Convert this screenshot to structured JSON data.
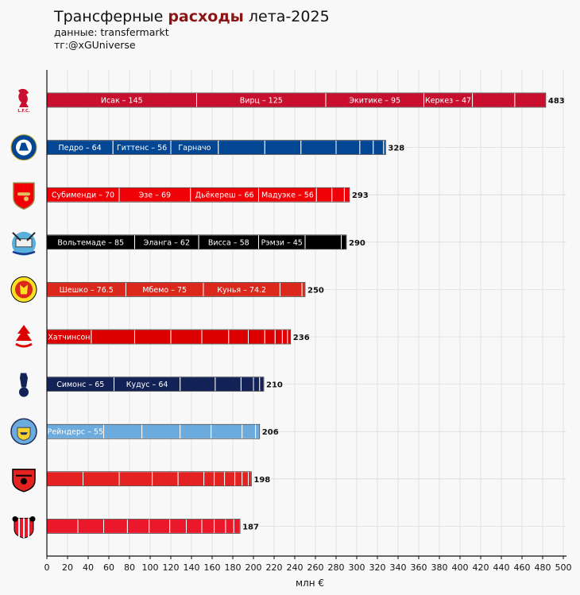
{
  "header": {
    "title_part1": "Трансферные ",
    "title_accent": "расходы",
    "title_part2": " лета-2025",
    "source": "данные: transfermarkt",
    "handle": "тг:@xGUniverse"
  },
  "colors": {
    "accent": "#8b1515",
    "grid": "#dcdcdc"
  },
  "chart_data": {
    "type": "bar",
    "orientation": "horizontal",
    "stacked": true,
    "xlabel": "млн €",
    "xlim": [
      0,
      500
    ],
    "xticks": [
      0,
      20,
      40,
      60,
      80,
      100,
      120,
      140,
      160,
      180,
      200,
      220,
      240,
      260,
      280,
      300,
      320,
      340,
      360,
      380,
      400,
      420,
      440,
      460,
      480,
      500
    ],
    "grid": true,
    "bars": [
      {
        "team": "Liverpool",
        "crest": "liverbird-icon",
        "color": "#c8102e",
        "total": "483",
        "segments": [
          {
            "label": "Исак – 145",
            "value": 145
          },
          {
            "label": "Вирц – 125",
            "value": 125
          },
          {
            "label": "Экитике – 95",
            "value": 95
          },
          {
            "label": "Керкез – 47",
            "value": 47
          },
          {
            "label": "",
            "value": 41
          },
          {
            "label": "",
            "value": 30
          }
        ]
      },
      {
        "team": "Chelsea",
        "crest": "chelsea-lion-icon",
        "color": "#034694",
        "total": "328",
        "segments": [
          {
            "label": "Педро – 64",
            "value": 64
          },
          {
            "label": "Гиттенс – 56",
            "value": 56
          },
          {
            "label": "Гарначо",
            "value": 46
          },
          {
            "label": "",
            "value": 45
          },
          {
            "label": "",
            "value": 35
          },
          {
            "label": "",
            "value": 34
          },
          {
            "label": "",
            "value": 23
          },
          {
            "label": "",
            "value": 13
          },
          {
            "label": "",
            "value": 10
          },
          {
            "label": "",
            "value": 2
          }
        ]
      },
      {
        "team": "Arsenal",
        "crest": "cannon-icon",
        "color": "#ef0107",
        "total": "293",
        "segments": [
          {
            "label": "Субименди – 70",
            "value": 70
          },
          {
            "label": "Эзе – 69",
            "value": 69
          },
          {
            "label": "Дьёкереш – 66",
            "value": 66
          },
          {
            "label": "Мадуэке – 56",
            "value": 56
          },
          {
            "label": "",
            "value": 15
          },
          {
            "label": "",
            "value": 12
          },
          {
            "label": "",
            "value": 5
          }
        ]
      },
      {
        "team": "Newcastle",
        "crest": "magpie-crest-icon",
        "color": "#000000",
        "total": "290",
        "segments": [
          {
            "label": "Вольтемаде – 85",
            "value": 85
          },
          {
            "label": "Эланга – 62",
            "value": 62
          },
          {
            "label": "Висса – 58",
            "value": 58
          },
          {
            "label": "Рэмзи – 45",
            "value": 45
          },
          {
            "label": "",
            "value": 35
          },
          {
            "label": "",
            "value": 5
          }
        ]
      },
      {
        "team": "Manchester United",
        "crest": "red-devil-icon",
        "color": "#da291c",
        "total": "250",
        "segments": [
          {
            "label": "Шешко – 76.5",
            "value": 76.5
          },
          {
            "label": "Мбемо – 75",
            "value": 75
          },
          {
            "label": "Кунья – 74.2",
            "value": 74.2
          },
          {
            "label": "",
            "value": 21.3
          },
          {
            "label": "",
            "value": 3
          }
        ]
      },
      {
        "team": "Nottingham Forest",
        "crest": "tree-crest-icon",
        "color": "#dd0000",
        "total": "236",
        "segments": [
          {
            "label": "Хатчинсон",
            "value": 43
          },
          {
            "label": "",
            "value": 42
          },
          {
            "label": "",
            "value": 35
          },
          {
            "label": "",
            "value": 30
          },
          {
            "label": "",
            "value": 26
          },
          {
            "label": "",
            "value": 19
          },
          {
            "label": "",
            "value": 16
          },
          {
            "label": "",
            "value": 10
          },
          {
            "label": "",
            "value": 7
          },
          {
            "label": "",
            "value": 5
          },
          {
            "label": "",
            "value": 3
          }
        ]
      },
      {
        "team": "Tottenham",
        "crest": "cockerel-icon",
        "color": "#132257",
        "total": "210",
        "segments": [
          {
            "label": "Симонс – 65",
            "value": 65
          },
          {
            "label": "Кудус – 64",
            "value": 64
          },
          {
            "label": "",
            "value": 34
          },
          {
            "label": "",
            "value": 25
          },
          {
            "label": "",
            "value": 12
          },
          {
            "label": "",
            "value": 6
          },
          {
            "label": "",
            "value": 4
          }
        ]
      },
      {
        "team": "Manchester City",
        "crest": "ship-crest-icon",
        "color": "#6cabdd",
        "total": "206",
        "segments": [
          {
            "label": "Рейндерс – 55",
            "value": 55
          },
          {
            "label": "",
            "value": 37
          },
          {
            "label": "",
            "value": 37
          },
          {
            "label": "",
            "value": 30
          },
          {
            "label": "",
            "value": 30
          },
          {
            "label": "",
            "value": 13
          },
          {
            "label": "",
            "value": 4
          }
        ]
      },
      {
        "team": "Bayer Leverkusen",
        "crest": "lion-shield-icon",
        "color": "#e32221",
        "total": "198",
        "segments": [
          {
            "label": "",
            "value": 35
          },
          {
            "label": "",
            "value": 35
          },
          {
            "label": "",
            "value": 32
          },
          {
            "label": "",
            "value": 25
          },
          {
            "label": "",
            "value": 25
          },
          {
            "label": "",
            "value": 10
          },
          {
            "label": "",
            "value": 10
          },
          {
            "label": "",
            "value": 10
          },
          {
            "label": "",
            "value": 7
          },
          {
            "label": "",
            "value": 6
          },
          {
            "label": "",
            "value": 3
          }
        ]
      },
      {
        "team": "Sunderland",
        "crest": "sunderland-crest-icon",
        "color": "#eb172b",
        "total": "187",
        "segments": [
          {
            "label": "",
            "value": 30
          },
          {
            "label": "",
            "value": 25
          },
          {
            "label": "",
            "value": 23
          },
          {
            "label": "",
            "value": 21
          },
          {
            "label": "",
            "value": 20
          },
          {
            "label": "",
            "value": 16
          },
          {
            "label": "",
            "value": 15
          },
          {
            "label": "",
            "value": 12
          },
          {
            "label": "",
            "value": 11
          },
          {
            "label": "",
            "value": 8
          },
          {
            "label": "",
            "value": 6
          }
        ]
      }
    ]
  }
}
